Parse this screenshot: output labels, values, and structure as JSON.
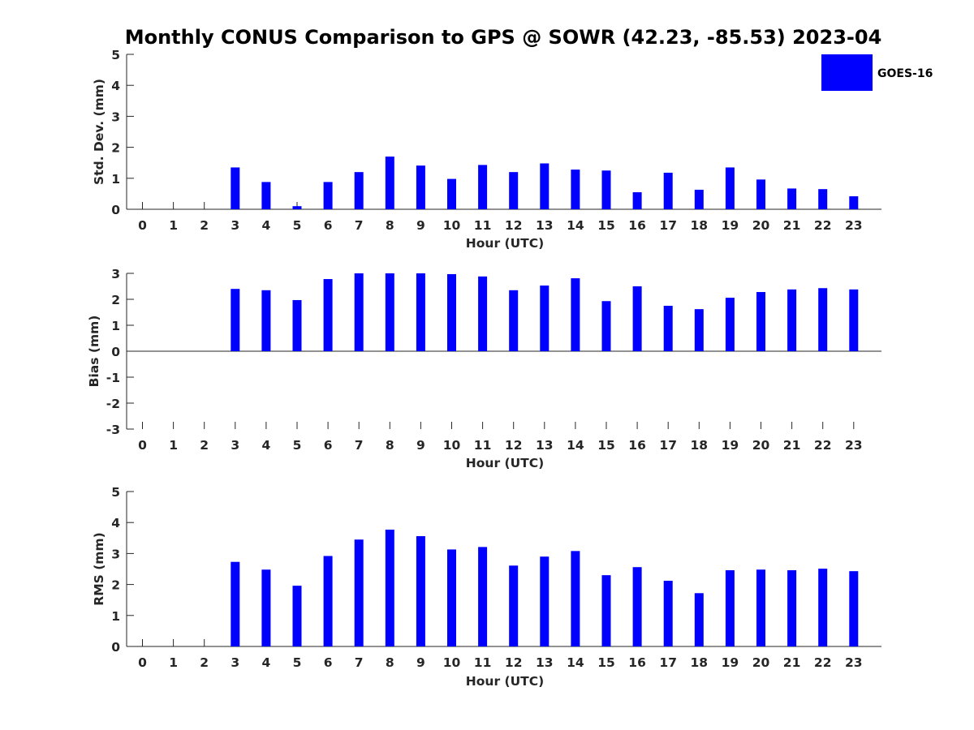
{
  "title": "Monthly CONUS Comparison to GPS @ SOWR (42.23, -85.53) 2023-04",
  "legend": {
    "label": "GOES-16",
    "color": "#0000ff"
  },
  "chart_data": [
    {
      "type": "bar",
      "name": "std_dev",
      "xlabel": "Hour (UTC)",
      "ylabel": "Std. Dev. (mm)",
      "categories": [
        "0",
        "1",
        "2",
        "3",
        "4",
        "5",
        "6",
        "7",
        "8",
        "9",
        "10",
        "11",
        "12",
        "13",
        "14",
        "15",
        "16",
        "17",
        "18",
        "19",
        "20",
        "21",
        "22",
        "23"
      ],
      "ylim": [
        0,
        5
      ],
      "yticks": [
        "0",
        "1",
        "2",
        "3",
        "4",
        "5"
      ],
      "series": [
        {
          "name": "GOES-16",
          "color": "#0000ff",
          "values": [
            null,
            null,
            null,
            1.35,
            0.88,
            0.1,
            0.88,
            1.2,
            1.7,
            1.41,
            0.98,
            1.43,
            1.2,
            1.48,
            1.28,
            1.25,
            0.55,
            1.18,
            0.63,
            1.35,
            0.96,
            0.67,
            0.65,
            0.42
          ]
        }
      ]
    },
    {
      "type": "bar",
      "name": "bias",
      "xlabel": "Hour (UTC)",
      "ylabel": "Bias (mm)",
      "categories": [
        "0",
        "1",
        "2",
        "3",
        "4",
        "5",
        "6",
        "7",
        "8",
        "9",
        "10",
        "11",
        "12",
        "13",
        "14",
        "15",
        "16",
        "17",
        "18",
        "19",
        "20",
        "21",
        "22",
        "23"
      ],
      "ylim": [
        -3,
        3
      ],
      "yticks": [
        "-3",
        "-2",
        "-1",
        "0",
        "1",
        "2",
        "3"
      ],
      "series": [
        {
          "name": "GOES-16",
          "color": "#0000ff",
          "values": [
            null,
            null,
            null,
            2.4,
            2.35,
            1.97,
            2.78,
            3.0,
            3.0,
            3.0,
            2.97,
            2.88,
            2.35,
            2.53,
            2.81,
            1.93,
            2.5,
            1.75,
            1.62,
            2.06,
            2.28,
            2.38,
            2.43,
            2.38
          ]
        }
      ]
    },
    {
      "type": "bar",
      "name": "rms",
      "xlabel": "Hour (UTC)",
      "ylabel": "RMS (mm)",
      "categories": [
        "0",
        "1",
        "2",
        "3",
        "4",
        "5",
        "6",
        "7",
        "8",
        "9",
        "10",
        "11",
        "12",
        "13",
        "14",
        "15",
        "16",
        "17",
        "18",
        "19",
        "20",
        "21",
        "22",
        "23"
      ],
      "ylim": [
        0,
        5
      ],
      "yticks": [
        "0",
        "1",
        "2",
        "3",
        "4",
        "5"
      ],
      "series": [
        {
          "name": "GOES-16",
          "color": "#0000ff",
          "values": [
            null,
            null,
            null,
            2.73,
            2.48,
            1.96,
            2.92,
            3.45,
            3.77,
            3.56,
            3.13,
            3.21,
            2.61,
            2.9,
            3.08,
            2.3,
            2.56,
            2.12,
            1.72,
            2.46,
            2.48,
            2.46,
            2.51,
            2.43
          ]
        }
      ]
    }
  ]
}
